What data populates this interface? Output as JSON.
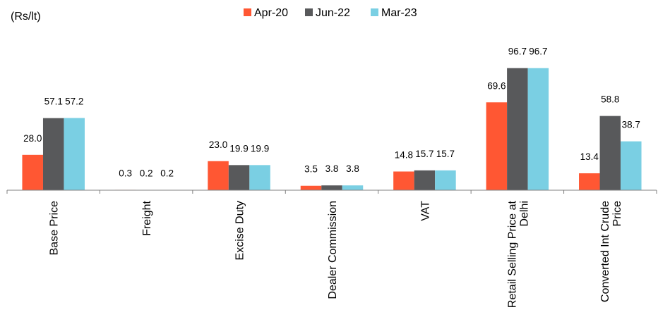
{
  "chart_data": {
    "type": "bar",
    "unit_label": "(Rs/lt)",
    "categories": [
      [
        "Base Price"
      ],
      [
        "Freight"
      ],
      [
        "Excise Duty"
      ],
      [
        "Dealer Commission"
      ],
      [
        "VAT"
      ],
      [
        "Retail Selling Price at",
        "Delhi"
      ],
      [
        "Converted Int Crude",
        "Price"
      ]
    ],
    "series": [
      {
        "name": "Apr-20",
        "color": "#FF5733",
        "values": [
          28.0,
          0.3,
          23.0,
          3.5,
          14.8,
          69.6,
          13.4
        ]
      },
      {
        "name": "Jun-22",
        "color": "#58595B",
        "values": [
          57.1,
          0.2,
          19.9,
          3.8,
          15.7,
          96.7,
          58.8
        ]
      },
      {
        "name": "Mar-23",
        "color": "#7ACFE3",
        "values": [
          57.2,
          0.2,
          19.9,
          3.8,
          15.7,
          96.7,
          38.7
        ]
      }
    ],
    "value_labels": [
      [
        "28.0",
        "0.3",
        "23.0",
        "3.5",
        "14.8",
        "69.6",
        "13.4"
      ],
      [
        "57.1",
        "0.2",
        "19.9",
        "3.8",
        "15.7",
        "96.7",
        "58.8"
      ],
      [
        "57.2",
        "0.2",
        "19.9",
        "3.8",
        "15.7",
        "96.7",
        "38.7"
      ]
    ],
    "ylim": [
      0,
      100
    ],
    "grid": false,
    "legend_position": "top-center"
  }
}
